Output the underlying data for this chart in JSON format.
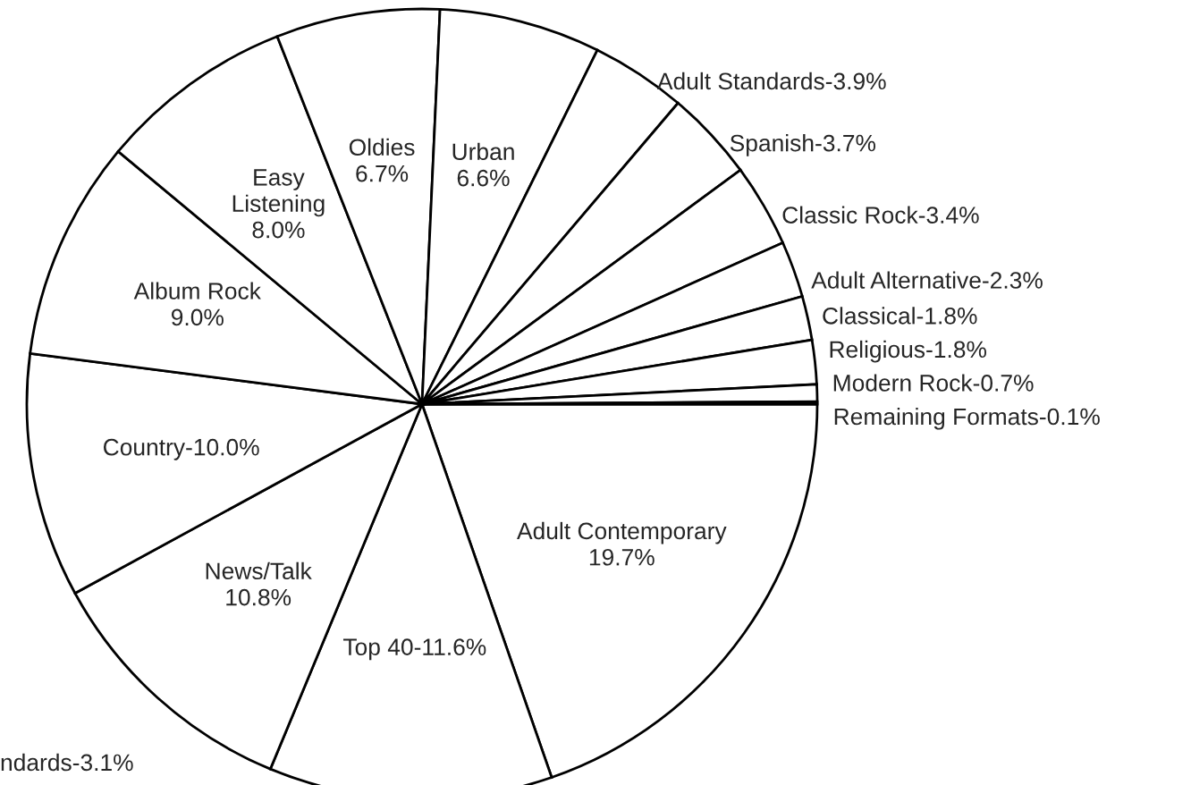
{
  "chart_data": {
    "type": "pie",
    "categories": [
      "Adult Contemporary\n19.7%",
      "Top 40-11.6%",
      "News/Talk\n10.8%",
      "Country-10.0%",
      "Album Rock\n9.0%",
      "Easy\nListening\n8.0%",
      "Oldies\n6.7%",
      "Urban\n6.6%",
      "Adult Standards-3.9%",
      "Spanish-3.7%",
      "Classic Rock-3.4%",
      "Adult Alternative-2.3%",
      "Classical-1.8%",
      "Religious-1.8%",
      "Modern Rock-0.7%",
      "Remaining Formats-0.1%"
    ],
    "values": [
      19.7,
      11.6,
      10.8,
      10.0,
      9.0,
      8.0,
      6.7,
      6.6,
      3.9,
      3.7,
      3.4,
      2.3,
      1.8,
      1.8,
      0.7,
      0.1
    ],
    "colors": [
      "#ffffff",
      "#ffffff",
      "#ffffff",
      "#ffffff",
      "#ffffff",
      "#ffffff",
      "#ffffff",
      "#ffffff",
      "#ffffff",
      "#ffffff",
      "#ffffff",
      "#ffffff",
      "#ffffff",
      "#ffffff",
      "#ffffff",
      "#ffffff"
    ],
    "annotations": [
      "ndards-3.1%"
    ]
  }
}
